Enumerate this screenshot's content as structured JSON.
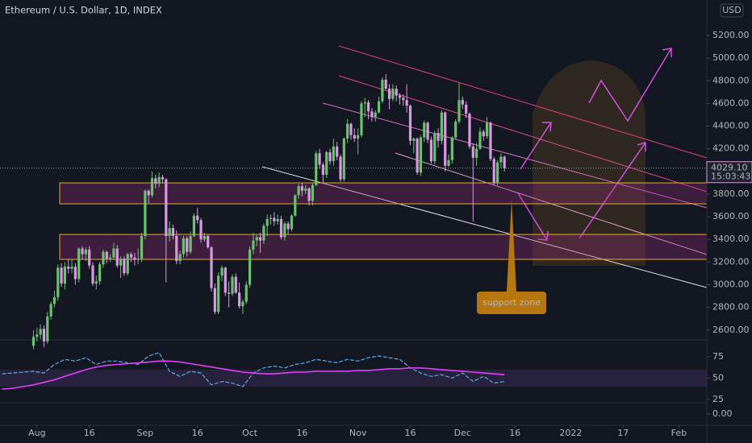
{
  "chart_data": [
    {
      "type": "candlestick",
      "title": "Ethereum / U.S. Dollar, 1D, INDEX",
      "currency": "USD",
      "up_color": "#6cc070",
      "down_color": "#d69be0",
      "x": [
        -1,
        0,
        1,
        2,
        3,
        4,
        5,
        6,
        7,
        8,
        9,
        10,
        11,
        12,
        13,
        14,
        15,
        16,
        17,
        18,
        19,
        20,
        21,
        22,
        23,
        24,
        25,
        26,
        27,
        28,
        29,
        30,
        31,
        32,
        33,
        34,
        35,
        36,
        37,
        38,
        39,
        40,
        41,
        42,
        43,
        44,
        45,
        46,
        47,
        48,
        49,
        50,
        51,
        52,
        53,
        54,
        55,
        56,
        57,
        58,
        59,
        60,
        61,
        62,
        63,
        64,
        65,
        66,
        67,
        68,
        69,
        70,
        71,
        72,
        73,
        74,
        75,
        76,
        77,
        78,
        79,
        80,
        81,
        82,
        83,
        84,
        85,
        86,
        87,
        88,
        89,
        90,
        91,
        92,
        93,
        94,
        95,
        96,
        97,
        98,
        99,
        100,
        101,
        102,
        103,
        104,
        105,
        106,
        107,
        108,
        109,
        110,
        111,
        112,
        113,
        114,
        115,
        116,
        117,
        118,
        119,
        120,
        121,
        122,
        123,
        124,
        125,
        126,
        127,
        128,
        129,
        130,
        131,
        132,
        133,
        134
      ],
      "ohlc": [
        [
          2460,
          2600,
          2430,
          2540
        ],
        [
          2540,
          2620,
          2500,
          2560
        ],
        [
          2560,
          2650,
          2520,
          2610
        ],
        [
          2610,
          2640,
          2450,
          2500
        ],
        [
          2500,
          2760,
          2480,
          2720
        ],
        [
          2720,
          2850,
          2690,
          2830
        ],
        [
          2830,
          2950,
          2800,
          2890
        ],
        [
          2890,
          3180,
          2860,
          3150
        ],
        [
          3150,
          3190,
          2980,
          3010
        ],
        [
          3010,
          3200,
          2960,
          3160
        ],
        [
          3160,
          3230,
          3100,
          3140
        ],
        [
          3140,
          3220,
          3100,
          3160
        ],
        [
          3160,
          3190,
          3000,
          3050
        ],
        [
          3050,
          3330,
          3020,
          3320
        ],
        [
          3320,
          3340,
          3220,
          3270
        ],
        [
          3270,
          3330,
          3210,
          3310
        ],
        [
          3310,
          3340,
          3140,
          3170
        ],
        [
          3170,
          3200,
          2990,
          3010
        ],
        [
          3010,
          3080,
          2960,
          3030
        ],
        [
          3030,
          3200,
          3000,
          3180
        ],
        [
          3180,
          3310,
          3150,
          3290
        ],
        [
          3290,
          3300,
          3190,
          3230
        ],
        [
          3230,
          3270,
          3200,
          3240
        ],
        [
          3240,
          3370,
          3220,
          3320
        ],
        [
          3320,
          3350,
          3150,
          3170
        ],
        [
          3170,
          3250,
          3060,
          3230
        ],
        [
          3230,
          3250,
          3080,
          3100
        ],
        [
          3100,
          3280,
          3080,
          3270
        ],
        [
          3270,
          3290,
          3200,
          3240
        ],
        [
          3240,
          3280,
          3170,
          3220
        ],
        [
          3220,
          3320,
          3180,
          3230
        ],
        [
          3230,
          3460,
          3200,
          3430
        ],
        [
          3430,
          3840,
          3400,
          3830
        ],
        [
          3830,
          3840,
          3720,
          3790
        ],
        [
          3790,
          4000,
          3770,
          3940
        ],
        [
          3940,
          3970,
          3850,
          3890
        ],
        [
          3890,
          3990,
          3860,
          3950
        ],
        [
          3950,
          3970,
          3900,
          3930
        ],
        [
          3930,
          3940,
          3020,
          3430
        ],
        [
          3430,
          3560,
          3380,
          3500
        ],
        [
          3500,
          3530,
          3400,
          3430
        ],
        [
          3430,
          3480,
          3180,
          3210
        ],
        [
          3210,
          3300,
          3180,
          3270
        ],
        [
          3270,
          3430,
          3240,
          3410
        ],
        [
          3410,
          3430,
          3250,
          3290
        ],
        [
          3290,
          3470,
          3270,
          3430
        ],
        [
          3430,
          3630,
          3420,
          3610
        ],
        [
          3610,
          3680,
          3540,
          3570
        ],
        [
          3570,
          3590,
          3370,
          3400
        ],
        [
          3400,
          3460,
          3380,
          3430
        ],
        [
          3430,
          3440,
          3320,
          3330
        ],
        [
          3330,
          3340,
          2940,
          2970
        ],
        [
          2970,
          3010,
          2740,
          2760
        ],
        [
          2760,
          3110,
          2740,
          3080
        ],
        [
          3080,
          3170,
          3030,
          3150
        ],
        [
          3150,
          3160,
          2900,
          2930
        ],
        [
          2930,
          3030,
          2800,
          2920
        ],
        [
          2920,
          3090,
          2900,
          3070
        ],
        [
          3070,
          3100,
          2920,
          2930
        ],
        [
          2930,
          3020,
          2790,
          2810
        ],
        [
          2810,
          2870,
          2740,
          2850
        ],
        [
          2850,
          3030,
          2830,
          3000
        ],
        [
          3000,
          3340,
          2970,
          3310
        ],
        [
          3310,
          3460,
          3270,
          3390
        ],
        [
          3390,
          3440,
          3340,
          3420
        ],
        [
          3420,
          3460,
          3280,
          3390
        ],
        [
          3390,
          3540,
          3360,
          3520
        ],
        [
          3520,
          3620,
          3430,
          3580
        ],
        [
          3580,
          3620,
          3530,
          3590
        ],
        [
          3590,
          3640,
          3520,
          3560
        ],
        [
          3560,
          3620,
          3530,
          3580
        ],
        [
          3580,
          3610,
          3400,
          3420
        ],
        [
          3420,
          3560,
          3390,
          3540
        ],
        [
          3540,
          3560,
          3440,
          3490
        ],
        [
          3490,
          3620,
          3470,
          3610
        ],
        [
          3610,
          3800,
          3600,
          3790
        ],
        [
          3790,
          3890,
          3760,
          3870
        ],
        [
          3870,
          3900,
          3780,
          3830
        ],
        [
          3830,
          3880,
          3800,
          3850
        ],
        [
          3850,
          3860,
          3700,
          3740
        ],
        [
          3740,
          3900,
          3700,
          3880
        ],
        [
          3880,
          4180,
          3870,
          4160
        ],
        [
          4160,
          4200,
          4020,
          4060
        ],
        [
          4060,
          4080,
          3900,
          3970
        ],
        [
          3970,
          4180,
          3940,
          4170
        ],
        [
          4170,
          4200,
          4060,
          4090
        ],
        [
          4090,
          4290,
          4050,
          4220
        ],
        [
          4220,
          4260,
          4100,
          4130
        ],
        [
          4130,
          4150,
          3910,
          3930
        ],
        [
          3930,
          4300,
          3910,
          4290
        ],
        [
          4290,
          4460,
          4250,
          4420
        ],
        [
          4420,
          4430,
          4280,
          4320
        ],
        [
          4320,
          4380,
          4260,
          4290
        ],
        [
          4290,
          4380,
          4150,
          4320
        ],
        [
          4320,
          4620,
          4300,
          4600
        ],
        [
          4600,
          4650,
          4480,
          4610
        ],
        [
          4610,
          4630,
          4460,
          4530
        ],
        [
          4530,
          4560,
          4440,
          4480
        ],
        [
          4480,
          4540,
          4440,
          4520
        ],
        [
          4520,
          4660,
          4510,
          4620
        ],
        [
          4620,
          4830,
          4600,
          4810
        ],
        [
          4810,
          4860,
          4720,
          4730
        ],
        [
          4730,
          4770,
          4550,
          4640
        ],
        [
          4640,
          4770,
          4620,
          4730
        ],
        [
          4730,
          4760,
          4620,
          4670
        ],
        [
          4670,
          4690,
          4590,
          4650
        ],
        [
          4650,
          4680,
          4580,
          4630
        ],
        [
          4630,
          4770,
          4520,
          4580
        ],
        [
          4580,
          4590,
          4230,
          4270
        ],
        [
          4270,
          4300,
          4160,
          4290
        ],
        [
          4290,
          4300,
          3970,
          3990
        ],
        [
          3990,
          4320,
          3960,
          4300
        ],
        [
          4300,
          4450,
          4260,
          4430
        ],
        [
          4430,
          4440,
          4250,
          4280
        ],
        [
          4280,
          4310,
          4070,
          4090
        ],
        [
          4090,
          4360,
          4060,
          4340
        ],
        [
          4340,
          4380,
          4210,
          4270
        ],
        [
          4270,
          4540,
          4240,
          4520
        ],
        [
          4520,
          4530,
          4000,
          4050
        ],
        [
          4050,
          4150,
          4040,
          4100
        ],
        [
          4100,
          4310,
          4070,
          4300
        ],
        [
          4300,
          4460,
          4280,
          4440
        ],
        [
          4440,
          4780,
          4420,
          4630
        ],
        [
          4630,
          4660,
          4550,
          4590
        ],
        [
          4590,
          4620,
          4470,
          4510
        ],
        [
          4510,
          4520,
          4200,
          4220
        ],
        [
          4220,
          4250,
          3560,
          4120
        ],
        [
          4120,
          4250,
          4050,
          4200
        ],
        [
          4200,
          4390,
          4190,
          4350
        ],
        [
          4350,
          4370,
          4270,
          4310
        ],
        [
          4310,
          4480,
          4290,
          4430
        ],
        [
          4430,
          4440,
          4090,
          4110
        ],
        [
          4110,
          4130,
          3880,
          3900
        ],
        [
          3900,
          4100,
          3880,
          4080
        ],
        [
          4080,
          4160,
          4030,
          4130
        ],
        [
          4130,
          4140,
          4000,
          4029.1
        ]
      ],
      "xlim": [
        -10.6,
        192
      ],
      "ylim": [
        2513,
        5513
      ],
      "xticks": [
        {
          "value": 0,
          "label": "Aug"
        },
        {
          "value": 15,
          "label": "16"
        },
        {
          "value": 31,
          "label": "Sep"
        },
        {
          "value": 46,
          "label": "16"
        },
        {
          "value": 61,
          "label": "Oct"
        },
        {
          "value": 76,
          "label": "16"
        },
        {
          "value": 92,
          "label": "Nov"
        },
        {
          "value": 107,
          "label": "16"
        },
        {
          "value": 122,
          "label": "Dec"
        },
        {
          "value": 137,
          "label": "16"
        },
        {
          "value": 153,
          "label": "2022"
        },
        {
          "value": 168,
          "label": "17"
        },
        {
          "value": 184,
          "label": "Feb"
        }
      ],
      "yticks": [
        {
          "value": 2600,
          "label": "2600.00"
        },
        {
          "value": 2800,
          "label": "2800.00"
        },
        {
          "value": 3000,
          "label": "3000.00"
        },
        {
          "value": 3200,
          "label": "3200.00"
        },
        {
          "value": 3400,
          "label": "3400.00"
        },
        {
          "value": 3600,
          "label": "3600.00"
        },
        {
          "value": 3800,
          "label": "3800.00"
        },
        {
          "value": 4200,
          "label": "4200.00"
        },
        {
          "value": 4400,
          "label": "4400.00"
        },
        {
          "value": 4600,
          "label": "4600.00"
        },
        {
          "value": 4800,
          "label": "4800.00"
        },
        {
          "value": 5000,
          "label": "5000.00"
        },
        {
          "value": 5200,
          "label": "5200.00"
        }
      ],
      "zones": [
        [
          3714,
          3899
        ],
        [
          3224,
          3444
        ]
      ],
      "zone_color": "#f5a623",
      "last_price": {
        "value": 4029.1,
        "label": "4029.10"
      },
      "countdown": "15:03:43",
      "annotation": "support zone"
    },
    {
      "type": "line",
      "x": [
        -10,
        -7,
        -4,
        -1,
        2,
        5,
        8,
        11,
        14,
        17,
        20,
        23,
        26,
        29,
        32,
        35,
        38,
        41,
        44,
        47,
        50,
        53,
        56,
        59,
        62,
        65,
        68,
        71,
        74,
        77,
        80,
        83,
        86,
        89,
        92,
        95,
        98,
        101,
        104,
        107,
        110,
        113,
        116,
        119,
        122,
        125,
        128,
        131,
        134
      ],
      "series": [
        {
          "color": "#5fa8e8",
          "values": [
            55,
            56,
            57,
            58,
            56,
            66,
            72,
            70,
            74,
            66,
            70,
            70,
            68,
            66,
            76,
            80,
            58,
            52,
            58,
            56,
            42,
            46,
            44,
            40,
            56,
            62,
            64,
            62,
            66,
            68,
            72,
            70,
            68,
            72,
            70,
            74,
            76,
            74,
            72,
            62,
            56,
            52,
            54,
            50,
            56,
            46,
            52,
            44,
            46
          ]
        },
        {
          "color": "#e040fb",
          "values": [
            37,
            38,
            40,
            42,
            45,
            48,
            52,
            56,
            60,
            63,
            65,
            66,
            67,
            68,
            69,
            70,
            70,
            69,
            67,
            65,
            63,
            61,
            59,
            57,
            56,
            55,
            55,
            56,
            57,
            57,
            58,
            58,
            58,
            58,
            59,
            59,
            60,
            61,
            61,
            62,
            62,
            61,
            60,
            59,
            58,
            57,
            56,
            55,
            54
          ]
        }
      ],
      "ylim": [
        21,
        94
      ],
      "yticks": [
        25,
        50,
        75
      ],
      "band": [
        40,
        60
      ]
    },
    {
      "type": "empty",
      "ylim": [
        -1,
        1
      ],
      "yticks": [
        {
          "value": 0,
          "label": "0.00"
        }
      ]
    }
  ]
}
